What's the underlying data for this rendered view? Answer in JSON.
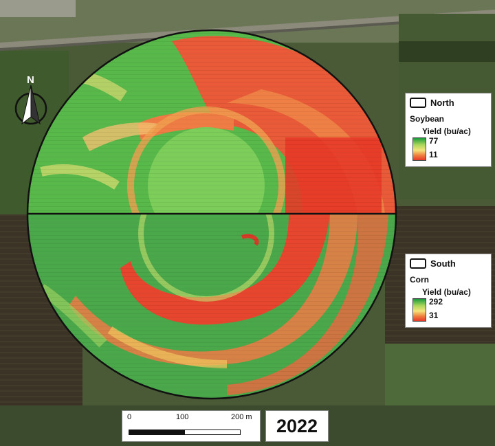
{
  "map": {
    "year": "2022",
    "north_arrow_label": "N",
    "scale_bar": {
      "labels": [
        "0",
        "100",
        "200 m"
      ]
    },
    "legends": [
      {
        "section": "North",
        "crop": "Soybean",
        "unit_label": "Yield (bu/ac)",
        "max": "77",
        "min": "11"
      },
      {
        "section": "South",
        "crop": "Corn",
        "unit_label": "Yield (bu/ac)",
        "max": "292",
        "min": "31"
      }
    ],
    "colors": {
      "high": "#1a9a3a",
      "mid": "#f4e47a",
      "low": "#e53a28",
      "boundary": "#111111"
    },
    "icons": [
      "north-arrow-icon"
    ]
  }
}
